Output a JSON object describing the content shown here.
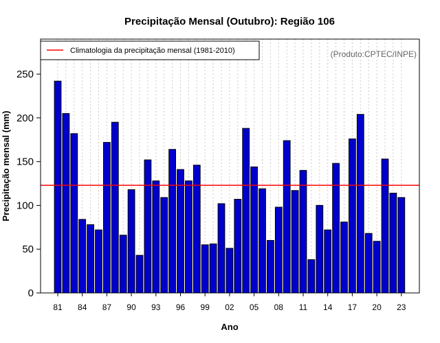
{
  "chart_data": {
    "type": "bar",
    "title": "Precipitação Mensal (Outubro): Região 106",
    "xlabel": "Ano",
    "ylabel": "Precipitação mensal (mm)",
    "source_label": "(Produto:CPTEC/INPE)",
    "legend_label": "Climatologia da precipitação mensal (1981-2010)",
    "legend_placement": "top-left",
    "climatology": 123,
    "ylim": [
      0,
      290
    ],
    "yticks": [
      0,
      50,
      100,
      150,
      200,
      250
    ],
    "categories": [
      "81",
      "82",
      "83",
      "84",
      "85",
      "86",
      "87",
      "88",
      "89",
      "90",
      "91",
      "92",
      "93",
      "94",
      "95",
      "96",
      "97",
      "98",
      "99",
      "00",
      "01",
      "02",
      "03",
      "04",
      "05",
      "06",
      "07",
      "08",
      "09",
      "10",
      "11",
      "12",
      "13",
      "14",
      "15",
      "16",
      "17",
      "18",
      "19",
      "20",
      "21",
      "22",
      "23"
    ],
    "xtick_labels": [
      "81",
      "84",
      "87",
      "90",
      "93",
      "96",
      "99",
      "02",
      "05",
      "08",
      "11",
      "14",
      "17",
      "20",
      "23"
    ],
    "values": [
      242,
      205,
      182,
      84,
      78,
      72,
      172,
      195,
      66,
      118,
      43,
      152,
      128,
      109,
      164,
      141,
      128,
      146,
      55,
      56,
      102,
      51,
      107,
      188,
      144,
      119,
      60,
      98,
      174,
      117,
      140,
      38,
      100,
      72,
      148,
      81,
      176,
      204,
      68,
      59,
      153,
      114,
      109
    ],
    "colors": {
      "bar_fill": "#0000CD",
      "bar_stroke": "#000000",
      "climatology_line": "#FF0000",
      "grid": "#C8C8C8"
    }
  }
}
